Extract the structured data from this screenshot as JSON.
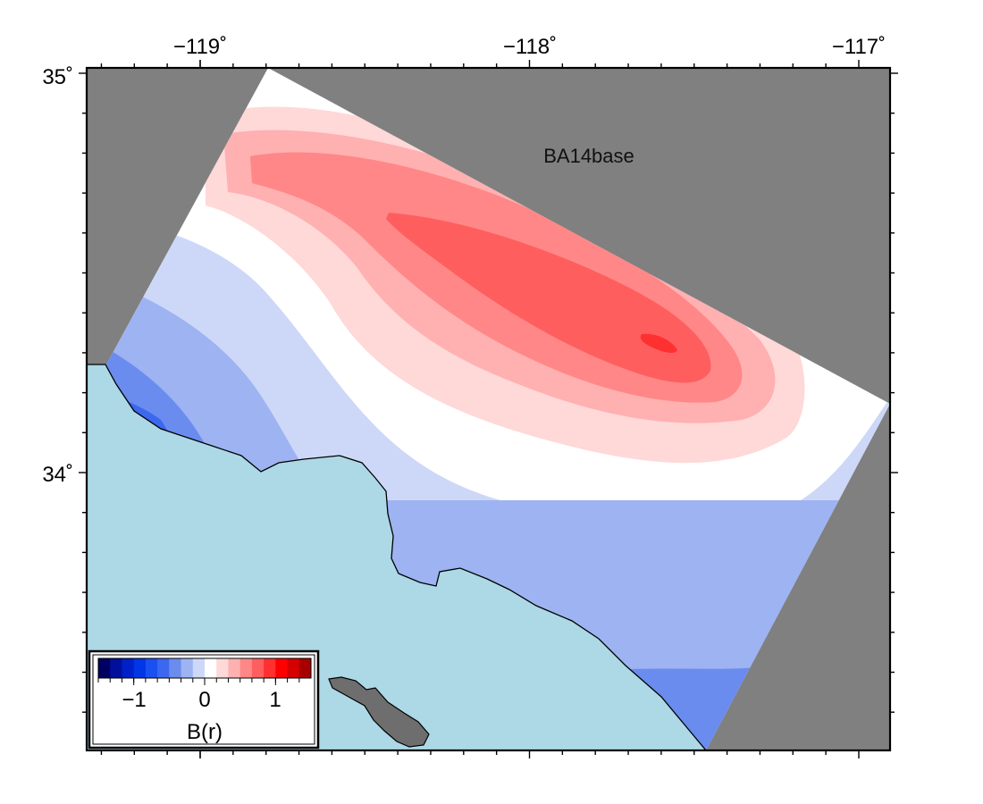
{
  "map": {
    "title": "BA14base",
    "lon_ticks": [
      {
        "label": "−119˚",
        "value": -119
      },
      {
        "label": "−118˚",
        "value": -118
      },
      {
        "label": "−117˚",
        "value": -117
      }
    ],
    "lat_ticks": [
      {
        "label": "35˚",
        "value": 35
      },
      {
        "label": "34˚",
        "value": 34
      }
    ],
    "extent": {
      "lon_min": -119.35,
      "lon_max": -116.9,
      "lat_min": 33.3,
      "lat_max": 35.0
    },
    "colors": {
      "land_outside": "#808080",
      "ocean": "#add8e6",
      "island": "#6e6e6e",
      "coastline": "#000000"
    }
  },
  "colorbar": {
    "label": "B(r)",
    "tick_labels": [
      "−1",
      "0",
      "1"
    ],
    "tick_values": [
      -1,
      0,
      1
    ],
    "range": [
      -1.5,
      1.5
    ],
    "colors": [
      "#000060",
      "#00109a",
      "#0020c8",
      "#0036e6",
      "#1a50f0",
      "#3b68ee",
      "#6a8cef",
      "#9db3f2",
      "#cdd8f8",
      "#ffffff",
      "#ffd8d8",
      "#ffb0b0",
      "#ff8787",
      "#ff5e5e",
      "#ff3030",
      "#ff0000",
      "#d60000",
      "#a80000"
    ]
  },
  "chart_data": {
    "type": "heatmap",
    "title": "BA14base",
    "variable": "B(r)",
    "x_ticks": [
      -119,
      -118,
      -117
    ],
    "y_ticks": [
      34,
      35
    ],
    "legend_placement": "bottom-left",
    "peak_value": 1.1,
    "min_value": -0.9
  }
}
